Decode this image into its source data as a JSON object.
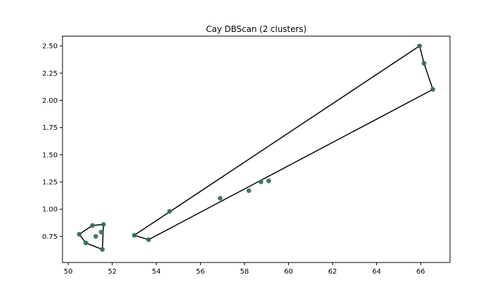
{
  "chart_data": {
    "type": "scatter",
    "title": "Cay DBScan (2 clusters)",
    "xlabel": "",
    "ylabel": "",
    "xlim": [
      49.74,
      67.33
    ],
    "ylim": [
      0.51,
      2.59
    ],
    "x_ticks": [
      50,
      52,
      54,
      56,
      58,
      60,
      62,
      64,
      66
    ],
    "y_ticks": [
      0.75,
      1.0,
      1.25,
      1.5,
      1.75,
      2.0,
      2.25,
      2.5
    ],
    "grid": false,
    "legend": "none",
    "point_color": "#2e6e4f",
    "hull_color": "#000000",
    "points": [
      {
        "x": 50.5,
        "y": 0.77
      },
      {
        "x": 50.8,
        "y": 0.69
      },
      {
        "x": 51.1,
        "y": 0.85
      },
      {
        "x": 51.25,
        "y": 0.75
      },
      {
        "x": 51.5,
        "y": 0.79
      },
      {
        "x": 51.6,
        "y": 0.86
      },
      {
        "x": 51.55,
        "y": 0.63
      },
      {
        "x": 53.0,
        "y": 0.76
      },
      {
        "x": 53.65,
        "y": 0.72
      },
      {
        "x": 54.6,
        "y": 0.98
      },
      {
        "x": 56.9,
        "y": 1.1
      },
      {
        "x": 58.2,
        "y": 1.17
      },
      {
        "x": 58.75,
        "y": 1.25
      },
      {
        "x": 59.1,
        "y": 1.26
      },
      {
        "x": 65.95,
        "y": 2.5
      },
      {
        "x": 66.15,
        "y": 2.34
      },
      {
        "x": 66.55,
        "y": 2.1
      }
    ],
    "clusters": [
      {
        "hull": [
          [
            50.5,
            0.77
          ],
          [
            50.8,
            0.69
          ],
          [
            51.55,
            0.63
          ],
          [
            51.6,
            0.86
          ],
          [
            51.1,
            0.85
          ]
        ]
      },
      {
        "hull": [
          [
            53.0,
            0.76
          ],
          [
            53.65,
            0.72
          ],
          [
            66.55,
            2.1
          ],
          [
            66.15,
            2.34
          ],
          [
            65.95,
            2.5
          ]
        ]
      }
    ]
  }
}
